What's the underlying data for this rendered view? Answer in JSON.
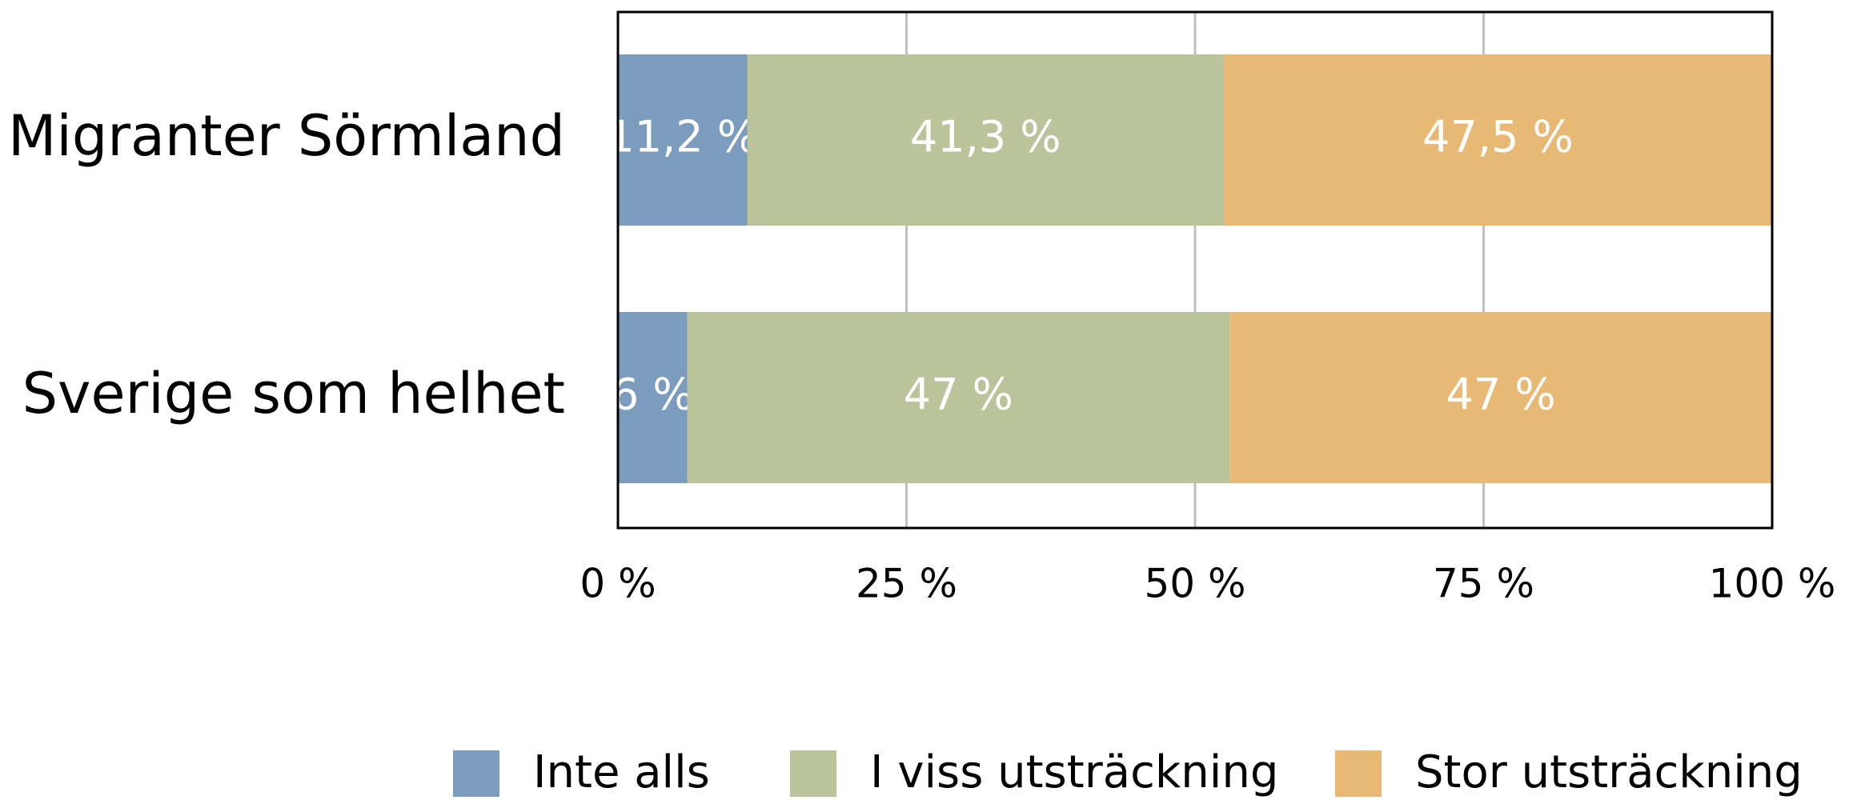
{
  "chart_data": {
    "type": "stacked-barh",
    "categories": [
      "Migranter Sörmland",
      "Sverige som helhet"
    ],
    "series": [
      {
        "name": "Inte alls",
        "color": "#7b9cbc",
        "values": [
          11.2,
          6
        ],
        "value_labels": [
          "11,2 %",
          "6 %"
        ]
      },
      {
        "name": "I viss utsträckning",
        "color": "#bbc39b",
        "values": [
          41.3,
          47
        ],
        "value_labels": [
          "41,3 %",
          "47 %"
        ]
      },
      {
        "name": "Stor utsträckning",
        "color": "#e8b974",
        "values": [
          47.5,
          47
        ],
        "value_labels": [
          "47,5 %",
          "47 %"
        ]
      }
    ],
    "xlim": [
      0,
      100
    ],
    "xticks": [
      {
        "value": 0,
        "label": "0 %"
      },
      {
        "value": 25,
        "label": "25 %"
      },
      {
        "value": 50,
        "label": "50 %"
      },
      {
        "value": 75,
        "label": "75 %"
      },
      {
        "value": 100,
        "label": "100 %"
      }
    ],
    "grid": true,
    "legend": "bottom"
  }
}
